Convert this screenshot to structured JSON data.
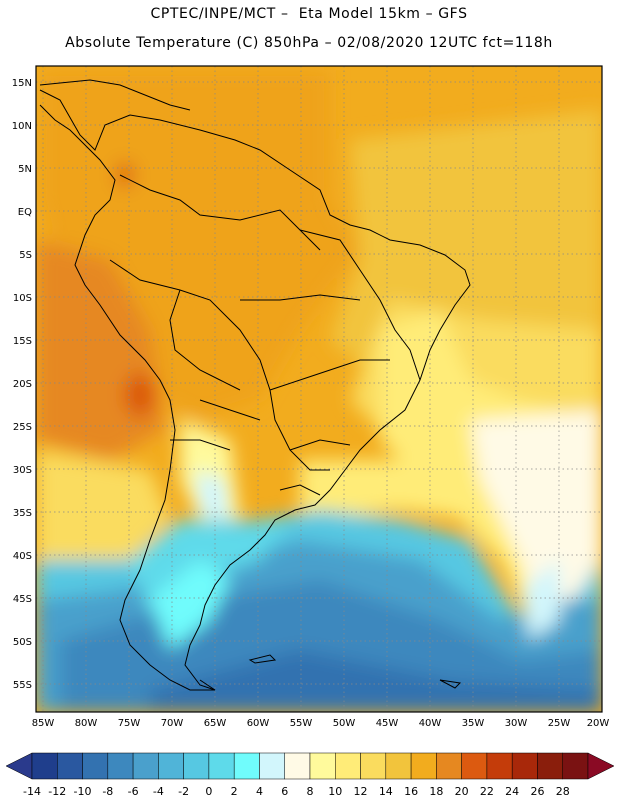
{
  "header": {
    "title_line1": "CPTEC/INPE/MCT –  Eta Model 15km – GFS",
    "title_line2": "Absolute Temperature (C) 850hPa – 02/08/2020 12UTC fct=118h"
  },
  "map": {
    "lat_labels": [
      "15N",
      "10N",
      "5N",
      "EQ",
      "5S",
      "10S",
      "15S",
      "20S",
      "25S",
      "30S",
      "35S",
      "40S",
      "45S",
      "50S",
      "55S"
    ],
    "lon_labels": [
      "85W",
      "80W",
      "75W",
      "70W",
      "65W",
      "60W",
      "55W",
      "50W",
      "45W",
      "40W",
      "35W",
      "30W",
      "25W",
      "20W"
    ],
    "grid": true
  },
  "colorbar": {
    "ticks": [
      "-14",
      "-12",
      "-10",
      "-8",
      "-6",
      "-4",
      "-2",
      "0",
      "2",
      "4",
      "6",
      "8",
      "10",
      "12",
      "14",
      "16",
      "18",
      "20",
      "22",
      "24",
      "26",
      "28"
    ],
    "colors": [
      "#1f3e8c",
      "#2a58a0",
      "#3372b0",
      "#3d88be",
      "#4aa0cc",
      "#50b4d8",
      "#56c8e2",
      "#5edaea",
      "#70fcfc",
      "#d2f6fc",
      "#fffae6",
      "#fffa9c",
      "#ffec78",
      "#fadc5e",
      "#f2c43c",
      "#f2ac1e",
      "#e68820",
      "#dc5a10",
      "#c43c0a",
      "#a8280a",
      "#8a1e0c",
      "#7a1212"
    ],
    "under_color": "#2a3a8c",
    "over_color": "#8a0a24"
  }
}
